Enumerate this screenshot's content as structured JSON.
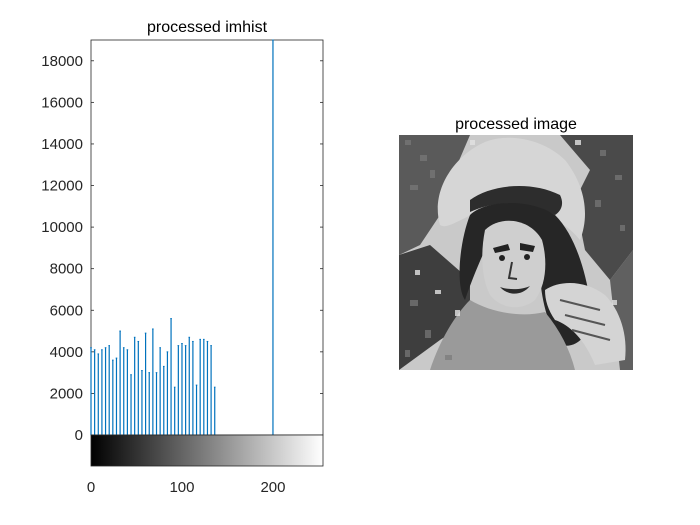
{
  "colors": {
    "stem": "#0072BD",
    "axis": "#262626"
  },
  "chart_data": [
    {
      "type": "bar",
      "subtype": "stem-histogram",
      "title": "processed imhist",
      "xlabel": "",
      "ylabel": "",
      "xlim": [
        0,
        255
      ],
      "ylim": [
        0,
        19000
      ],
      "xticks": [
        0,
        100,
        200
      ],
      "xtick_labels": [
        "0",
        "100",
        "200"
      ],
      "yticks": [
        0,
        2000,
        4000,
        6000,
        8000,
        10000,
        12000,
        14000,
        16000,
        18000
      ],
      "ytick_labels": [
        "0",
        "2000",
        "4000",
        "6000",
        "8000",
        "10000",
        "12000",
        "14000",
        "16000",
        "18000"
      ],
      "colorbar": "grayscale gradient 0 (black) to 255 (white)",
      "x": [
        0,
        4,
        8,
        12,
        16,
        20,
        24,
        28,
        32,
        36,
        40,
        44,
        48,
        52,
        56,
        60,
        64,
        68,
        72,
        76,
        80,
        84,
        88,
        92,
        96,
        100,
        104,
        108,
        112,
        116,
        120,
        124,
        128,
        132,
        136,
        140,
        200
      ],
      "values": [
        4200,
        4100,
        3900,
        4100,
        4200,
        4300,
        3600,
        3700,
        5000,
        4200,
        4100,
        2900,
        4700,
        4500,
        3100,
        4900,
        3000,
        5100,
        3000,
        4200,
        3300,
        4000,
        5600,
        2300,
        4300,
        4400,
        4300,
        4700,
        4500,
        2400,
        4600,
        4600,
        4500,
        4300,
        2300,
        0,
        19000
      ],
      "grid": false
    },
    {
      "type": "image",
      "title": "processed image",
      "description_colormap": "grayscale"
    }
  ]
}
